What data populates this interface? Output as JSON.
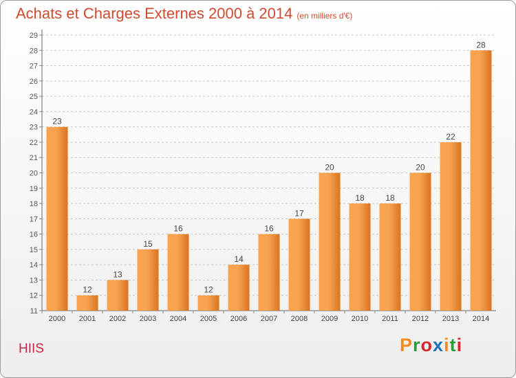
{
  "header": {
    "title": "Achats et Charges Externes 2000 à 2014",
    "unit": "(en milliers d'€)"
  },
  "footer": {
    "commune": "HIIS",
    "logo": "Proxiti",
    "logo_colors": [
      "#f28c1c",
      "#2a9a3a",
      "#d9262b",
      "#1e73be",
      "#f28c1c",
      "#2a9a3a",
      "#d9262b"
    ]
  },
  "chart_data": {
    "type": "bar",
    "categories": [
      "2000",
      "2001",
      "2002",
      "2003",
      "2004",
      "2005",
      "2006",
      "2007",
      "2008",
      "2009",
      "2010",
      "2011",
      "2012",
      "2013",
      "2014"
    ],
    "values": [
      23,
      12,
      13,
      15,
      16,
      12,
      14,
      16,
      17,
      20,
      18,
      18,
      20,
      22,
      28
    ],
    "ylim": [
      11,
      29
    ],
    "yticks": [
      11,
      12,
      13,
      14,
      15,
      16,
      17,
      18,
      19,
      20,
      21,
      22,
      23,
      24,
      25,
      26,
      27,
      28,
      29
    ],
    "grid": "horizontal-dashed",
    "bar_color_light": "#f7a352",
    "bar_color_dark": "#d8741f"
  }
}
